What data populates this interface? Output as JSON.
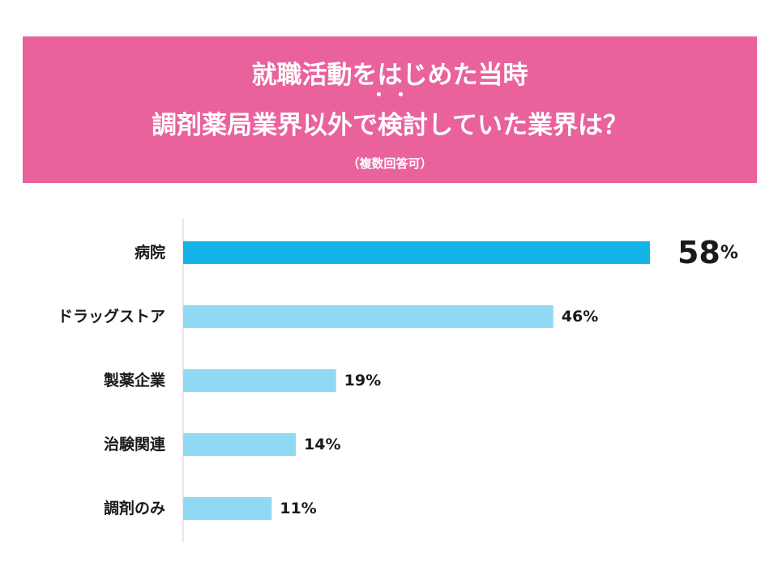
{
  "header": {
    "title_line1": "就職活動をはじめた当時",
    "title_dots": "・ ・",
    "title_line2": "調剤薬局業界以外で検討していた業界は？",
    "subtitle": "（複数回答可）"
  },
  "colors": {
    "banner": "#e9629c",
    "highlight_bar": "#12b4e8",
    "bar": "#8fd9f5",
    "axis": "#d0d0d0",
    "text": "#1a1a1a"
  },
  "chart_data": {
    "type": "bar",
    "orientation": "horizontal",
    "categories": [
      "病院",
      "ドラッグストア",
      "製薬企業",
      "治験関連",
      "調剤のみ"
    ],
    "values": [
      58,
      46,
      19,
      14,
      11
    ],
    "value_suffix": "%",
    "highlight_index": 0,
    "xlim": [
      0,
      100
    ],
    "grid": false
  }
}
